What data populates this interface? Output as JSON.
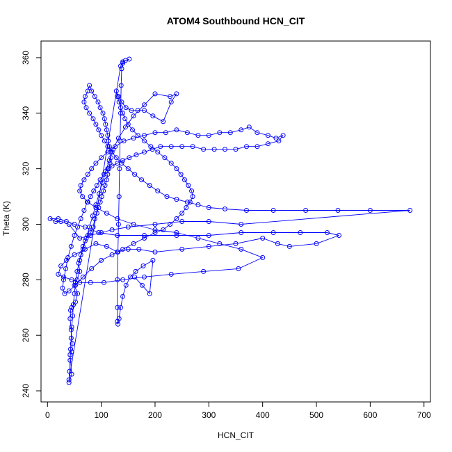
{
  "chart_data": {
    "type": "scatter",
    "title": "ATOM4 Southbound HCN_CIT",
    "xlabel": "HCN_CIT",
    "ylabel": "Theta (K)",
    "xlim": [
      -12,
      712
    ],
    "ylim": [
      236,
      366
    ],
    "x_ticks": [
      "0",
      "100",
      "200",
      "300",
      "400",
      "500",
      "600",
      "700"
    ],
    "y_ticks": [
      "240",
      "260",
      "280",
      "300",
      "320",
      "340",
      "360"
    ],
    "grid": false,
    "legend": "none",
    "series": [
      {
        "color": "#0000ff",
        "marker": "open-circle",
        "connected": true,
        "points": [
          [
            40,
            243
          ],
          [
            45,
            246
          ],
          [
            42,
            253
          ],
          [
            45,
            254
          ],
          [
            46,
            257
          ],
          [
            44,
            262
          ],
          [
            42,
            266
          ],
          [
            43,
            269
          ],
          [
            45,
            270
          ],
          [
            48,
            271
          ],
          [
            52,
            272
          ],
          [
            56,
            275
          ],
          [
            50,
            278
          ],
          [
            55,
            280
          ],
          [
            60,
            283
          ],
          [
            58,
            286
          ],
          [
            62,
            289
          ],
          [
            66,
            292
          ],
          [
            70,
            294
          ],
          [
            75,
            296
          ],
          [
            80,
            297
          ],
          [
            85,
            299
          ],
          [
            88,
            302
          ],
          [
            92,
            304
          ],
          [
            95,
            306
          ],
          [
            98,
            308
          ],
          [
            101,
            310
          ],
          [
            104,
            312
          ],
          [
            107,
            314
          ],
          [
            110,
            316
          ],
          [
            112,
            318
          ],
          [
            114,
            320
          ],
          [
            116,
            322
          ],
          [
            118,
            324
          ],
          [
            117,
            326
          ],
          [
            115,
            328
          ],
          [
            113,
            330
          ],
          [
            112,
            332
          ],
          [
            110,
            334
          ],
          [
            108,
            336
          ],
          [
            106,
            338
          ],
          [
            103,
            340
          ],
          [
            98,
            342
          ],
          [
            94,
            344
          ],
          [
            88,
            346
          ],
          [
            82,
            348
          ],
          [
            78,
            350
          ],
          [
            75,
            348
          ],
          [
            70,
            346
          ],
          [
            68,
            344
          ],
          [
            72,
            342
          ],
          [
            78,
            340
          ],
          [
            85,
            338
          ],
          [
            90,
            336
          ],
          [
            95,
            334
          ],
          [
            100,
            332
          ],
          [
            106,
            330
          ],
          [
            112,
            328
          ],
          [
            120,
            326
          ],
          [
            128,
            324
          ],
          [
            138,
            322
          ],
          [
            150,
            320
          ],
          [
            162,
            318
          ],
          [
            175,
            316
          ],
          [
            190,
            314
          ],
          [
            205,
            312
          ],
          [
            222,
            310
          ],
          [
            240,
            309
          ],
          [
            260,
            308
          ],
          [
            280,
            307
          ],
          [
            300,
            306
          ],
          [
            330,
            305.5
          ],
          [
            370,
            305
          ],
          [
            420,
            305
          ],
          [
            480,
            305
          ],
          [
            540,
            305
          ],
          [
            600,
            305
          ],
          [
            674,
            305
          ],
          [
            360,
            300
          ],
          [
            300,
            301
          ],
          [
            250,
            301
          ],
          [
            200,
            300
          ],
          [
            150,
            299
          ],
          [
            120,
            298
          ],
          [
            100,
            297
          ],
          [
            80,
            296
          ],
          [
            60,
            295
          ],
          [
            40,
            300
          ],
          [
            25,
            301
          ],
          [
            15,
            301
          ],
          [
            5,
            302
          ],
          [
            20,
            302
          ],
          [
            35,
            301
          ],
          [
            50,
            300
          ],
          [
            70,
            299
          ],
          [
            95,
            297
          ],
          [
            130,
            296
          ],
          [
            180,
            296
          ],
          [
            240,
            296
          ],
          [
            300,
            296
          ],
          [
            360,
            297
          ],
          [
            420,
            297
          ],
          [
            470,
            297
          ],
          [
            520,
            297
          ],
          [
            542,
            296
          ],
          [
            500,
            293
          ],
          [
            450,
            292
          ],
          [
            428,
            293
          ],
          [
            400,
            295
          ],
          [
            350,
            293
          ],
          [
            300,
            292
          ],
          [
            250,
            291
          ],
          [
            200,
            290
          ],
          [
            170,
            291
          ],
          [
            150,
            291
          ],
          [
            130,
            290
          ],
          [
            110,
            292
          ],
          [
            90,
            293
          ],
          [
            70,
            291
          ],
          [
            50,
            289
          ],
          [
            35,
            287
          ],
          [
            25,
            285
          ],
          [
            20,
            282
          ],
          [
            30,
            281
          ],
          [
            45,
            280
          ],
          [
            60,
            279
          ],
          [
            80,
            279
          ],
          [
            105,
            279
          ],
          [
            140,
            280
          ],
          [
            180,
            281
          ],
          [
            230,
            282
          ],
          [
            290,
            283
          ],
          [
            355,
            284
          ],
          [
            400,
            288
          ],
          [
            360,
            291
          ],
          [
            320,
            293
          ],
          [
            280,
            295
          ],
          [
            240,
            297
          ],
          [
            200,
            298
          ],
          [
            160,
            300
          ],
          [
            130,
            302
          ],
          [
            110,
            304
          ],
          [
            90,
            306
          ],
          [
            75,
            308
          ],
          [
            65,
            310
          ],
          [
            60,
            312
          ],
          [
            62,
            314
          ],
          [
            68,
            316
          ],
          [
            75,
            318
          ],
          [
            82,
            320
          ],
          [
            90,
            322
          ],
          [
            100,
            324
          ],
          [
            112,
            326
          ],
          [
            126,
            328
          ],
          [
            142,
            330
          ],
          [
            160,
            331
          ],
          [
            180,
            332
          ],
          [
            200,
            333
          ],
          [
            220,
            333
          ],
          [
            240,
            334
          ],
          [
            260,
            333
          ],
          [
            280,
            332
          ],
          [
            300,
            332
          ],
          [
            320,
            333
          ],
          [
            340,
            333
          ],
          [
            360,
            334
          ],
          [
            375,
            335
          ],
          [
            390,
            333
          ],
          [
            410,
            332
          ],
          [
            425,
            331
          ],
          [
            438,
            332
          ],
          [
            430,
            330
          ],
          [
            410,
            329
          ],
          [
            390,
            328
          ],
          [
            370,
            328
          ],
          [
            350,
            327
          ],
          [
            330,
            327
          ],
          [
            310,
            327
          ],
          [
            290,
            327
          ],
          [
            270,
            328
          ],
          [
            250,
            328
          ],
          [
            230,
            328
          ],
          [
            210,
            328
          ],
          [
            195,
            327
          ],
          [
            180,
            326
          ],
          [
            165,
            325
          ],
          [
            152,
            324
          ],
          [
            140,
            323
          ],
          [
            130,
            322
          ],
          [
            120,
            321
          ],
          [
            112,
            320
          ],
          [
            105,
            318
          ],
          [
            98,
            316
          ],
          [
            92,
            314
          ],
          [
            86,
            312
          ],
          [
            80,
            310
          ],
          [
            74,
            308
          ],
          [
            68,
            305
          ],
          [
            62,
            302
          ],
          [
            56,
            299
          ],
          [
            50,
            296
          ],
          [
            44,
            292
          ],
          [
            38,
            288
          ],
          [
            34,
            284
          ],
          [
            30,
            280
          ],
          [
            28,
            277
          ],
          [
            32,
            275
          ],
          [
            40,
            276
          ],
          [
            52,
            278
          ],
          [
            66,
            281
          ],
          [
            82,
            284
          ],
          [
            100,
            287
          ],
          [
            120,
            289
          ],
          [
            140,
            291
          ],
          [
            160,
            293
          ],
          [
            180,
            295
          ],
          [
            200,
            297
          ],
          [
            215,
            298
          ],
          [
            228,
            300
          ],
          [
            240,
            302
          ],
          [
            250,
            304
          ],
          [
            258,
            306
          ],
          [
            265,
            308
          ],
          [
            270,
            310
          ],
          [
            268,
            312
          ],
          [
            262,
            314
          ],
          [
            255,
            316
          ],
          [
            248,
            318
          ],
          [
            240,
            320
          ],
          [
            230,
            322
          ],
          [
            218,
            324
          ],
          [
            205,
            326
          ],
          [
            192,
            328
          ],
          [
            180,
            330
          ],
          [
            168,
            332
          ],
          [
            158,
            334
          ],
          [
            150,
            336
          ],
          [
            144,
            338
          ],
          [
            140,
            340
          ],
          [
            136,
            342
          ],
          [
            133,
            344
          ],
          [
            130,
            346
          ],
          [
            128,
            348
          ],
          [
            132,
            346
          ],
          [
            138,
            344
          ],
          [
            146,
            342
          ],
          [
            156,
            341
          ],
          [
            168,
            341
          ],
          [
            180,
            341
          ],
          [
            196,
            339
          ],
          [
            215,
            337
          ],
          [
            230,
            344
          ],
          [
            240,
            347
          ],
          [
            228,
            346
          ],
          [
            200,
            347
          ],
          [
            180,
            343
          ],
          [
            160,
            339
          ],
          [
            145,
            335
          ],
          [
            132,
            331
          ],
          [
            122,
            327
          ],
          [
            115,
            323
          ],
          [
            108,
            319
          ],
          [
            102,
            315
          ],
          [
            96,
            311
          ],
          [
            90,
            307
          ],
          [
            84,
            303
          ],
          [
            78,
            299
          ],
          [
            72,
            295
          ],
          [
            66,
            291
          ],
          [
            60,
            287
          ],
          [
            55,
            283
          ],
          [
            52,
            279
          ],
          [
            50,
            275
          ],
          [
            48,
            271
          ],
          [
            47,
            267
          ],
          [
            45,
            263
          ],
          [
            44,
            259
          ],
          [
            43,
            255
          ],
          [
            42,
            251
          ],
          [
            41,
            247
          ],
          [
            40,
            244
          ],
          [
            136,
            357
          ],
          [
            140,
            358
          ],
          [
            145,
            359
          ],
          [
            152,
            359.5
          ],
          [
            140,
            358.5
          ],
          [
            138,
            356
          ],
          [
            137,
            350
          ],
          [
            136,
            340
          ],
          [
            135,
            330
          ],
          [
            134,
            320
          ],
          [
            133,
            310
          ],
          [
            132,
            300
          ],
          [
            131,
            290
          ],
          [
            130,
            280
          ],
          [
            130,
            270
          ],
          [
            130,
            265
          ],
          [
            131,
            264
          ],
          [
            133,
            266
          ],
          [
            136,
            270
          ],
          [
            140,
            274
          ],
          [
            146,
            278
          ],
          [
            154,
            281
          ],
          [
            164,
            283
          ],
          [
            178,
            285
          ],
          [
            196,
            287
          ],
          [
            190,
            275
          ],
          [
            176,
            278
          ],
          [
            162,
            281
          ]
        ]
      }
    ]
  }
}
